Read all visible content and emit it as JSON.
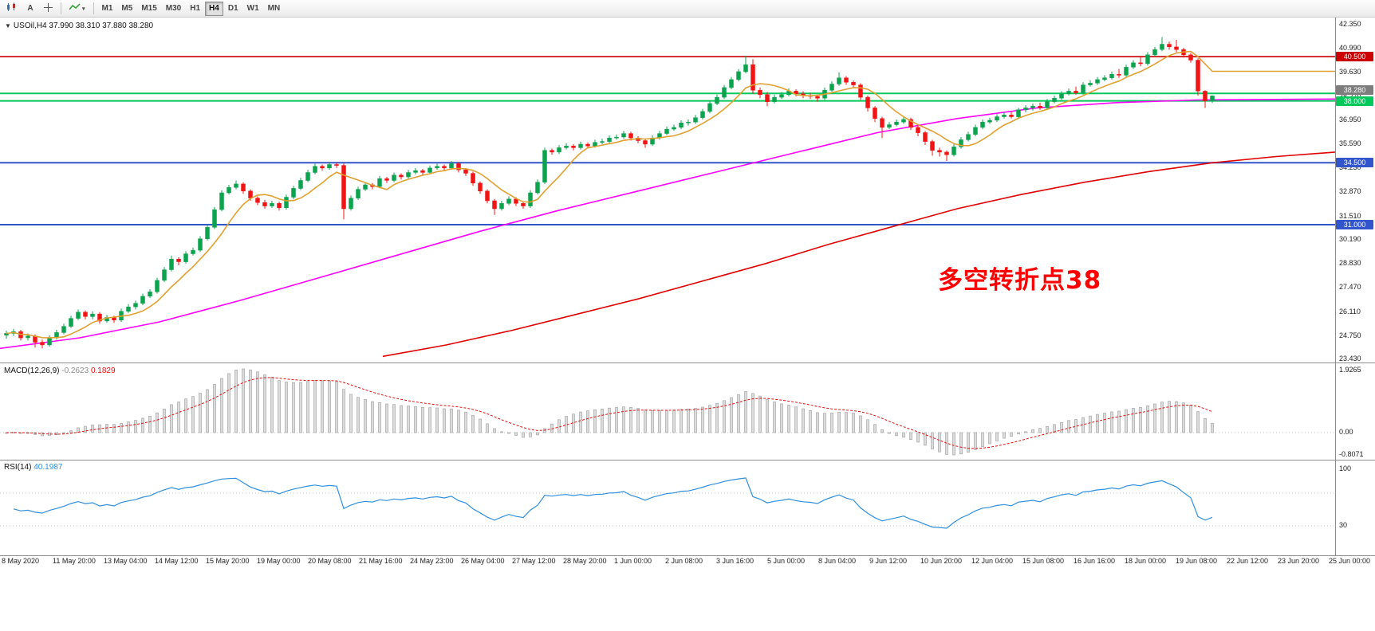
{
  "toolbar": {
    "text_tool_label": "A",
    "timeframes": [
      "M1",
      "M5",
      "M15",
      "M30",
      "H1",
      "H4",
      "D1",
      "W1",
      "MN"
    ],
    "active_timeframe": "H4"
  },
  "header": {
    "symbol_period": "USOil,H4",
    "ohlc": "37.990 38.310 37.880 38.280"
  },
  "annotation": {
    "text": "多空转折点38",
    "color": "#ff0000"
  },
  "chart_data": {
    "type": "candlestick",
    "symbol": "USOil",
    "timeframe": "H4",
    "price_range": {
      "min": 23.43,
      "max": 42.35
    },
    "price_axis_labels": [
      "42.350",
      "40.990",
      "39.630",
      "38.270",
      "36.950",
      "35.590",
      "34.230",
      "32.870",
      "31.510",
      "30.190",
      "28.830",
      "27.470",
      "26.110",
      "24.750",
      "23.430"
    ],
    "time_labels": [
      "8 May 2020",
      "11 May 20:00",
      "13 May 04:00",
      "14 May 12:00",
      "15 May 20:00",
      "19 May 00:00",
      "20 May 08:00",
      "21 May 16:00",
      "24 May 23:00",
      "26 May 04:00",
      "27 May 12:00",
      "28 May 20:00",
      "1 Jun 00:00",
      "2 Jun 08:00",
      "3 Jun 16:00",
      "5 Jun 00:00",
      "8 Jun 04:00",
      "9 Jun 12:00",
      "10 Jun 20:00",
      "12 Jun 04:00",
      "15 Jun 08:00",
      "16 Jun 16:00",
      "18 Jun 00:00",
      "19 Jun 08:00",
      "22 Jun 12:00",
      "23 Jun 20:00",
      "25 Jun 00:00"
    ],
    "hlines": [
      {
        "price": 40.5,
        "label": "40.500",
        "color_key": "hline_red",
        "width": 1.6
      },
      {
        "price": 38.42,
        "label": "",
        "color_key": "hline_green",
        "width": 2
      },
      {
        "price": 38.0,
        "label": "38.000",
        "color_key": "hline_green",
        "width": 2
      },
      {
        "price": 34.5,
        "label": "34.500",
        "color_key": "hline_blue",
        "width": 2
      },
      {
        "price": 31.0,
        "label": "31.000",
        "color_key": "hline_blue",
        "width": 2
      }
    ],
    "current_price": {
      "value": 38.28,
      "label": "38.280"
    },
    "colors": {
      "up": "#0ca34f",
      "down": "#f01414",
      "ma_fast": "#e0a030",
      "ma_mid": "#ff00ff",
      "ma_slow": "#e00000",
      "macd_bar": "#dcdcdc",
      "macd_bar_border": "#9a9a9a",
      "macd_signal": "#e01010",
      "rsi": "#2f8fdd",
      "hline_red": "#cc0000",
      "hline_blue": "#3355cc",
      "hline_green": "#00c85a",
      "current_badge_bg": "#7d7d7d"
    },
    "overlays": {
      "ma_fast_period": 7,
      "ma_mid_points": [
        [
          0,
          24.0
        ],
        [
          100,
          24.6
        ],
        [
          200,
          25.5
        ],
        [
          300,
          26.7
        ],
        [
          400,
          28.0
        ],
        [
          500,
          29.3
        ],
        [
          600,
          30.6
        ],
        [
          700,
          31.8
        ],
        [
          800,
          32.9
        ],
        [
          900,
          34.0
        ],
        [
          1000,
          35.1
        ],
        [
          1100,
          36.2
        ],
        [
          1200,
          37.0
        ],
        [
          1300,
          37.6
        ],
        [
          1400,
          37.9
        ],
        [
          1500,
          38.05
        ],
        [
          1674,
          38.1
        ]
      ],
      "ma_slow_points": [
        [
          480,
          23.55
        ],
        [
          560,
          24.2
        ],
        [
          640,
          25.0
        ],
        [
          720,
          25.9
        ],
        [
          800,
          26.8
        ],
        [
          880,
          27.8
        ],
        [
          960,
          28.8
        ],
        [
          1040,
          29.9
        ],
        [
          1120,
          30.9
        ],
        [
          1200,
          31.9
        ],
        [
          1280,
          32.7
        ],
        [
          1360,
          33.4
        ],
        [
          1440,
          34.0
        ],
        [
          1520,
          34.5
        ],
        [
          1600,
          34.85
        ],
        [
          1674,
          35.1
        ]
      ]
    },
    "macd": {
      "label": "MACD(12,26,9)",
      "main_value": "-0.2623",
      "signal_value": "0.1829",
      "axis_labels": [
        "1.9265",
        "0.00",
        "-0.8071"
      ],
      "params": [
        12,
        26,
        9
      ]
    },
    "rsi": {
      "label": "RSI(14)",
      "value": "40.1987",
      "axis_labels": [
        "100",
        "30"
      ],
      "period": 14,
      "levels": [
        70,
        30
      ]
    },
    "ohlc": [
      [
        24.75,
        25.0,
        24.55,
        24.85
      ],
      [
        24.85,
        25.1,
        24.7,
        24.95
      ],
      [
        24.95,
        25.05,
        24.45,
        24.6
      ],
      [
        24.6,
        24.85,
        24.45,
        24.7
      ],
      [
        24.7,
        24.8,
        24.05,
        24.35
      ],
      [
        24.35,
        24.5,
        24.0,
        24.2
      ],
      [
        24.2,
        24.75,
        24.1,
        24.6
      ],
      [
        24.6,
        25.05,
        24.5,
        24.9
      ],
      [
        24.9,
        25.4,
        24.8,
        25.25
      ],
      [
        25.25,
        25.85,
        25.15,
        25.7
      ],
      [
        25.7,
        26.2,
        25.6,
        26.05
      ],
      [
        26.05,
        26.15,
        25.65,
        25.8
      ],
      [
        25.8,
        26.1,
        25.65,
        25.95
      ],
      [
        25.95,
        26.05,
        25.4,
        25.55
      ],
      [
        25.55,
        25.9,
        25.45,
        25.75
      ],
      [
        25.75,
        25.85,
        25.45,
        25.6
      ],
      [
        25.6,
        26.25,
        25.5,
        26.1
      ],
      [
        26.1,
        26.5,
        26.0,
        26.35
      ],
      [
        26.35,
        26.7,
        26.2,
        26.55
      ],
      [
        26.55,
        27.1,
        26.45,
        26.95
      ],
      [
        26.95,
        27.35,
        26.85,
        27.2
      ],
      [
        27.2,
        28.0,
        27.1,
        27.85
      ],
      [
        27.85,
        28.6,
        27.75,
        28.45
      ],
      [
        28.45,
        29.25,
        28.35,
        29.05
      ],
      [
        29.05,
        29.15,
        28.7,
        28.9
      ],
      [
        28.9,
        29.5,
        28.8,
        29.35
      ],
      [
        29.35,
        29.7,
        29.25,
        29.55
      ],
      [
        29.55,
        30.35,
        29.45,
        30.2
      ],
      [
        30.2,
        31.0,
        30.1,
        30.85
      ],
      [
        30.85,
        32.0,
        30.75,
        31.85
      ],
      [
        31.85,
        32.95,
        31.75,
        32.8
      ],
      [
        32.8,
        33.25,
        32.7,
        33.1
      ],
      [
        33.1,
        33.5,
        33.0,
        33.3
      ],
      [
        33.3,
        33.4,
        32.75,
        32.9
      ],
      [
        32.9,
        33.0,
        32.35,
        32.5
      ],
      [
        32.5,
        32.6,
        32.1,
        32.25
      ],
      [
        32.25,
        32.4,
        31.9,
        32.05
      ],
      [
        32.05,
        32.35,
        31.95,
        32.2
      ],
      [
        32.2,
        32.3,
        31.8,
        31.95
      ],
      [
        31.95,
        32.7,
        31.85,
        32.55
      ],
      [
        32.55,
        33.2,
        32.45,
        33.05
      ],
      [
        33.05,
        33.65,
        32.95,
        33.5
      ],
      [
        33.5,
        34.1,
        33.4,
        33.95
      ],
      [
        33.95,
        34.45,
        33.85,
        34.3
      ],
      [
        34.3,
        34.4,
        34.05,
        34.2
      ],
      [
        34.2,
        34.55,
        34.1,
        34.4
      ],
      [
        34.4,
        34.5,
        34.2,
        34.35
      ],
      [
        34.35,
        34.45,
        31.3,
        31.9
      ],
      [
        31.9,
        32.65,
        31.8,
        32.5
      ],
      [
        32.5,
        33.15,
        32.4,
        33.0
      ],
      [
        33.0,
        33.4,
        32.9,
        33.25
      ],
      [
        33.25,
        33.35,
        33.0,
        33.15
      ],
      [
        33.15,
        33.75,
        33.05,
        33.6
      ],
      [
        33.6,
        33.7,
        33.35,
        33.5
      ],
      [
        33.5,
        33.95,
        33.4,
        33.8
      ],
      [
        33.8,
        33.9,
        33.55,
        33.7
      ],
      [
        33.7,
        34.1,
        33.6,
        33.95
      ],
      [
        33.95,
        34.2,
        33.85,
        34.05
      ],
      [
        34.05,
        34.15,
        33.8,
        33.95
      ],
      [
        33.95,
        34.35,
        33.85,
        34.2
      ],
      [
        34.2,
        34.45,
        34.1,
        34.3
      ],
      [
        34.3,
        34.4,
        34.05,
        34.2
      ],
      [
        34.2,
        34.6,
        34.1,
        34.45
      ],
      [
        34.45,
        34.55,
        33.95,
        34.1
      ],
      [
        34.1,
        34.2,
        33.75,
        33.9
      ],
      [
        33.9,
        34.0,
        33.2,
        33.35
      ],
      [
        33.35,
        33.45,
        32.75,
        32.9
      ],
      [
        32.9,
        33.0,
        32.2,
        32.35
      ],
      [
        32.35,
        32.45,
        31.55,
        31.9
      ],
      [
        31.9,
        32.35,
        31.8,
        32.2
      ],
      [
        32.2,
        32.6,
        32.1,
        32.45
      ],
      [
        32.45,
        32.55,
        32.05,
        32.2
      ],
      [
        32.2,
        32.3,
        31.9,
        32.05
      ],
      [
        32.05,
        32.95,
        31.95,
        32.8
      ],
      [
        32.8,
        33.55,
        32.7,
        33.4
      ],
      [
        33.4,
        35.35,
        33.3,
        35.2
      ],
      [
        35.2,
        35.3,
        34.95,
        35.1
      ],
      [
        35.1,
        35.5,
        35.0,
        35.35
      ],
      [
        35.35,
        35.6,
        35.25,
        35.45
      ],
      [
        35.45,
        35.55,
        35.2,
        35.35
      ],
      [
        35.35,
        35.7,
        35.25,
        35.55
      ],
      [
        35.55,
        35.65,
        35.3,
        35.45
      ],
      [
        35.45,
        35.8,
        35.35,
        35.65
      ],
      [
        35.65,
        35.85,
        35.55,
        35.7
      ],
      [
        35.7,
        36.05,
        35.6,
        35.9
      ],
      [
        35.9,
        36.1,
        35.8,
        35.95
      ],
      [
        35.95,
        36.3,
        35.85,
        36.15
      ],
      [
        36.15,
        36.25,
        35.75,
        35.9
      ],
      [
        35.9,
        36.0,
        35.6,
        35.75
      ],
      [
        35.75,
        35.85,
        35.35,
        35.55
      ],
      [
        35.55,
        36.05,
        35.45,
        35.9
      ],
      [
        35.9,
        36.3,
        35.8,
        36.15
      ],
      [
        36.15,
        36.55,
        36.05,
        36.4
      ],
      [
        36.4,
        36.65,
        36.3,
        36.5
      ],
      [
        36.5,
        36.9,
        36.4,
        36.75
      ],
      [
        36.75,
        36.95,
        36.6,
        36.8
      ],
      [
        36.8,
        37.2,
        36.7,
        37.05
      ],
      [
        37.05,
        37.55,
        36.95,
        37.4
      ],
      [
        37.4,
        38.0,
        37.3,
        37.85
      ],
      [
        37.85,
        38.35,
        37.75,
        38.2
      ],
      [
        38.2,
        38.9,
        38.1,
        38.75
      ],
      [
        38.75,
        39.35,
        38.65,
        39.2
      ],
      [
        39.2,
        39.8,
        39.1,
        39.65
      ],
      [
        39.65,
        40.55,
        39.55,
        40.05
      ],
      [
        40.05,
        40.35,
        38.4,
        38.6
      ],
      [
        38.6,
        38.75,
        38.15,
        38.35
      ],
      [
        38.35,
        38.5,
        37.7,
        37.95
      ],
      [
        37.95,
        38.35,
        37.85,
        38.2
      ],
      [
        38.2,
        38.5,
        38.1,
        38.35
      ],
      [
        38.35,
        38.7,
        38.25,
        38.55
      ],
      [
        38.55,
        38.65,
        38.25,
        38.4
      ],
      [
        38.4,
        38.55,
        38.15,
        38.3
      ],
      [
        38.3,
        38.45,
        38.1,
        38.25
      ],
      [
        38.25,
        38.35,
        37.95,
        38.15
      ],
      [
        38.15,
        38.75,
        38.05,
        38.6
      ],
      [
        38.6,
        39.1,
        38.5,
        38.95
      ],
      [
        38.95,
        39.6,
        38.85,
        39.3
      ],
      [
        39.3,
        39.4,
        38.9,
        39.05
      ],
      [
        39.05,
        39.15,
        38.7,
        38.9
      ],
      [
        38.9,
        39.0,
        38.05,
        38.2
      ],
      [
        38.2,
        38.3,
        37.4,
        37.6
      ],
      [
        37.6,
        37.7,
        36.8,
        37.0
      ],
      [
        37.0,
        37.1,
        35.9,
        36.5
      ],
      [
        36.5,
        36.8,
        36.4,
        36.65
      ],
      [
        36.65,
        36.95,
        36.55,
        36.8
      ],
      [
        36.8,
        37.1,
        36.7,
        36.95
      ],
      [
        36.95,
        37.05,
        36.35,
        36.5
      ],
      [
        36.5,
        36.6,
        36.0,
        36.2
      ],
      [
        36.2,
        36.3,
        35.5,
        35.7
      ],
      [
        35.7,
        35.8,
        34.9,
        35.2
      ],
      [
        35.2,
        35.35,
        34.85,
        35.1
      ],
      [
        35.1,
        35.2,
        34.6,
        34.95
      ],
      [
        34.95,
        35.55,
        34.85,
        35.4
      ],
      [
        35.4,
        35.95,
        35.3,
        35.8
      ],
      [
        35.8,
        36.25,
        35.7,
        36.1
      ],
      [
        36.1,
        36.65,
        36.0,
        36.5
      ],
      [
        36.5,
        36.95,
        36.4,
        36.8
      ],
      [
        36.8,
        37.05,
        36.7,
        36.9
      ],
      [
        36.9,
        37.25,
        36.8,
        37.1
      ],
      [
        37.1,
        37.35,
        37.0,
        37.2
      ],
      [
        37.2,
        37.4,
        37.0,
        37.1
      ],
      [
        37.1,
        37.6,
        37.0,
        37.5
      ],
      [
        37.5,
        37.75,
        37.35,
        37.6
      ],
      [
        37.6,
        37.85,
        37.45,
        37.7
      ],
      [
        37.7,
        37.9,
        37.5,
        37.6
      ],
      [
        37.6,
        38.1,
        37.5,
        37.95
      ],
      [
        37.95,
        38.3,
        37.85,
        38.15
      ],
      [
        38.15,
        38.55,
        38.05,
        38.4
      ],
      [
        38.4,
        38.7,
        38.3,
        38.55
      ],
      [
        38.55,
        38.8,
        38.35,
        38.45
      ],
      [
        38.45,
        39.05,
        38.35,
        38.9
      ],
      [
        38.9,
        39.15,
        38.8,
        39.0
      ],
      [
        39.0,
        39.35,
        38.9,
        39.2
      ],
      [
        39.2,
        39.45,
        39.1,
        39.3
      ],
      [
        39.3,
        39.65,
        39.2,
        39.5
      ],
      [
        39.5,
        39.8,
        39.3,
        39.45
      ],
      [
        39.45,
        40.05,
        39.35,
        39.9
      ],
      [
        39.9,
        40.3,
        39.8,
        40.15
      ],
      [
        40.15,
        40.5,
        39.95,
        40.1
      ],
      [
        40.1,
        40.75,
        40.0,
        40.6
      ],
      [
        40.6,
        41.05,
        40.5,
        40.9
      ],
      [
        40.9,
        41.6,
        40.8,
        41.2
      ],
      [
        41.2,
        41.35,
        40.9,
        41.05
      ],
      [
        41.05,
        41.45,
        40.75,
        40.9
      ],
      [
        40.9,
        41.0,
        40.45,
        40.6
      ],
      [
        40.6,
        40.7,
        40.15,
        40.3
      ],
      [
        40.3,
        40.4,
        38.3,
        38.55
      ],
      [
        38.55,
        38.6,
        37.6,
        38.0
      ],
      [
        37.99,
        38.31,
        37.88,
        38.28
      ]
    ]
  }
}
